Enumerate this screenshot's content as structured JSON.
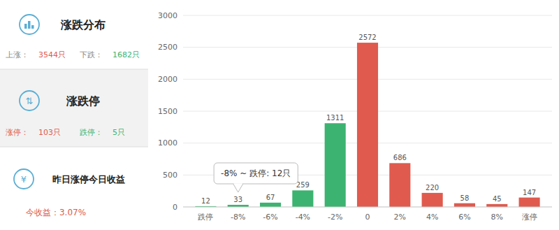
{
  "chart_data": {
    "type": "bar",
    "title": "涨跌分布",
    "categories": [
      "跌停",
      "-8%",
      "-6%",
      "-4%",
      "-2%",
      "0",
      "2%",
      "4%",
      "6%",
      "8%",
      "涨停"
    ],
    "values": [
      12,
      33,
      67,
      259,
      1311,
      2572,
      686,
      220,
      58,
      45,
      147
    ],
    "colors": [
      "#3cb371",
      "#3cb371",
      "#3cb371",
      "#3cb371",
      "#3cb371",
      "#e05a4e",
      "#e05a4e",
      "#e05a4e",
      "#e05a4e",
      "#e05a4e",
      "#e05a4e"
    ],
    "ylim": [
      0,
      3000
    ],
    "yticks": [
      0,
      500,
      1000,
      1500,
      2000,
      2500,
      3000
    ],
    "grid": true,
    "data_labels": true,
    "annotations": [
      {
        "text": "上涨：",
        "color": "#888888"
      },
      {
        "text": "3544只",
        "color": "#e05a4e"
      },
      {
        "text": "下跌：",
        "color": "#888888"
      },
      {
        "text": "1682只",
        "color": "#3cb371"
      },
      {
        "text": "涨跌停",
        "color": "#222222"
      },
      {
        "text": "涨停：",
        "color": "#e05a4e"
      },
      {
        "text": "103只",
        "color": "#e05a4e"
      },
      {
        "text": "跌停：",
        "color": "#3cb371"
      },
      {
        "text": "5只",
        "color": "#3cb371"
      },
      {
        "text": "昨日涨停今日收益",
        "color": "#222222"
      },
      {
        "text": "今收益：3.07%",
        "color": "#e05a4e"
      },
      {
        "text": "⇅",
        "color": "#5baed4"
      },
      {
        "text": "¥",
        "color": "#5baed4"
      },
      {
        "text": "-8% ~ 跌停: 12只",
        "category": "-8%"
      }
    ]
  }
}
